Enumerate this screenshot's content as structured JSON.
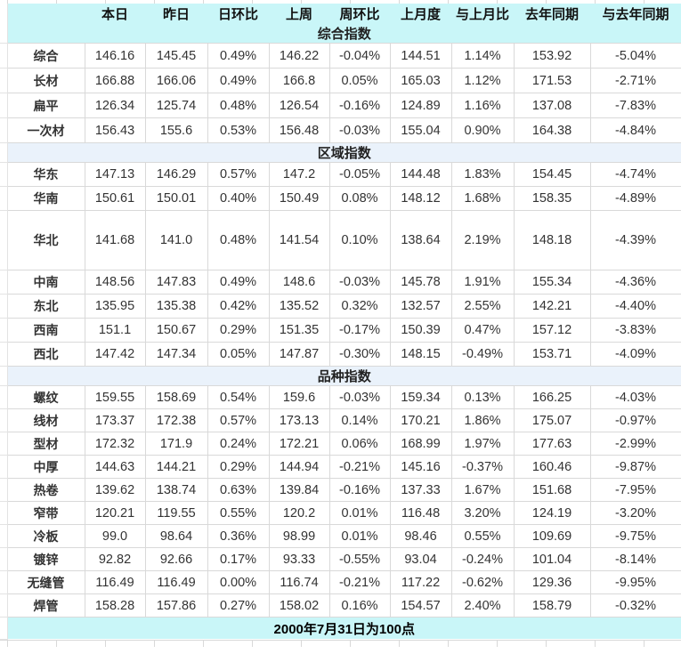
{
  "chart_data": {
    "type": "table",
    "columns": [
      "本日",
      "昨日",
      "日环比",
      "上周",
      "周环比",
      "上月度",
      "与上月比",
      "去年同期",
      "与去年同期"
    ],
    "tone_legend": {
      "u": "up-red",
      "d": "down-green",
      "n": "neutral-black"
    },
    "sections": [
      {
        "title": "综合指数",
        "band": "cyan",
        "rows": [
          {
            "label": "综合",
            "cells": [
              [
                "146.16",
                "n"
              ],
              [
                "145.45",
                "n"
              ],
              [
                "0.49%",
                "u"
              ],
              [
                "146.22",
                "n"
              ],
              [
                "-0.04%",
                "d"
              ],
              [
                "144.51",
                "n"
              ],
              [
                "1.14%",
                "u"
              ],
              [
                "153.92",
                "n"
              ],
              [
                "-5.04%",
                "d"
              ]
            ]
          },
          {
            "label": "长材",
            "cells": [
              [
                "166.88",
                "n"
              ],
              [
                "166.06",
                "n"
              ],
              [
                "0.49%",
                "u"
              ],
              [
                "166.8",
                "n"
              ],
              [
                "0.05%",
                "u"
              ],
              [
                "165.03",
                "n"
              ],
              [
                "1.12%",
                "u"
              ],
              [
                "171.53",
                "n"
              ],
              [
                "-2.71%",
                "d"
              ]
            ]
          },
          {
            "label": "扁平",
            "cells": [
              [
                "126.34",
                "n"
              ],
              [
                "125.74",
                "n"
              ],
              [
                "0.48%",
                "u"
              ],
              [
                "126.54",
                "n"
              ],
              [
                "-0.16%",
                "d"
              ],
              [
                "124.89",
                "n"
              ],
              [
                "1.16%",
                "u"
              ],
              [
                "137.08",
                "n"
              ],
              [
                "-7.83%",
                "d"
              ]
            ]
          },
          {
            "label": "一次材",
            "cells": [
              [
                "156.43",
                "n"
              ],
              [
                "155.6",
                "n"
              ],
              [
                "0.53%",
                "u"
              ],
              [
                "156.48",
                "n"
              ],
              [
                "-0.03%",
                "d"
              ],
              [
                "155.04",
                "n"
              ],
              [
                "0.90%",
                "u"
              ],
              [
                "164.38",
                "n"
              ],
              [
                "-4.84%",
                "d"
              ]
            ]
          }
        ]
      },
      {
        "title": "区域指数",
        "band": "blue",
        "rows": [
          {
            "label": "华东",
            "cells": [
              [
                "147.13",
                "n"
              ],
              [
                "146.29",
                "n"
              ],
              [
                "0.57%",
                "u"
              ],
              [
                "147.2",
                "n"
              ],
              [
                "-0.05%",
                "d"
              ],
              [
                "144.48",
                "n"
              ],
              [
                "1.83%",
                "u"
              ],
              [
                "154.45",
                "n"
              ],
              [
                "-4.74%",
                "d"
              ]
            ]
          },
          {
            "label": "华南",
            "cells": [
              [
                "150.61",
                "n"
              ],
              [
                "150.01",
                "n"
              ],
              [
                "0.40%",
                "u"
              ],
              [
                "150.49",
                "n"
              ],
              [
                "0.08%",
                "u"
              ],
              [
                "148.12",
                "n"
              ],
              [
                "1.68%",
                "u"
              ],
              [
                "158.35",
                "n"
              ],
              [
                "-4.89%",
                "d"
              ]
            ]
          },
          {
            "label": "华北",
            "tall": true,
            "cells": [
              [
                "141.68",
                "n"
              ],
              [
                "141.0",
                "n"
              ],
              [
                "0.48%",
                "u"
              ],
              [
                "141.54",
                "n"
              ],
              [
                "0.10%",
                "u"
              ],
              [
                "138.64",
                "n"
              ],
              [
                "2.19%",
                "u"
              ],
              [
                "148.18",
                "n"
              ],
              [
                "-4.39%",
                "d"
              ]
            ]
          },
          {
            "label": "中南",
            "cells": [
              [
                "148.56",
                "n"
              ],
              [
                "147.83",
                "n"
              ],
              [
                "0.49%",
                "u"
              ],
              [
                "148.6",
                "n"
              ],
              [
                "-0.03%",
                "d"
              ],
              [
                "145.78",
                "n"
              ],
              [
                "1.91%",
                "u"
              ],
              [
                "155.34",
                "n"
              ],
              [
                "-4.36%",
                "d"
              ]
            ]
          },
          {
            "label": "东北",
            "cells": [
              [
                "135.95",
                "n"
              ],
              [
                "135.38",
                "n"
              ],
              [
                "0.42%",
                "u"
              ],
              [
                "135.52",
                "n"
              ],
              [
                "0.32%",
                "u"
              ],
              [
                "132.57",
                "n"
              ],
              [
                "2.55%",
                "u"
              ],
              [
                "142.21",
                "n"
              ],
              [
                "-4.40%",
                "d"
              ]
            ]
          },
          {
            "label": "西南",
            "cells": [
              [
                "151.1",
                "n"
              ],
              [
                "150.67",
                "n"
              ],
              [
                "0.29%",
                "u"
              ],
              [
                "151.35",
                "n"
              ],
              [
                "-0.17%",
                "d"
              ],
              [
                "150.39",
                "n"
              ],
              [
                "0.47%",
                "u"
              ],
              [
                "157.12",
                "n"
              ],
              [
                "-3.83%",
                "d"
              ]
            ]
          },
          {
            "label": "西北",
            "cells": [
              [
                "147.42",
                "n"
              ],
              [
                "147.34",
                "n"
              ],
              [
                "0.05%",
                "u"
              ],
              [
                "147.87",
                "n"
              ],
              [
                "-0.30%",
                "d"
              ],
              [
                "148.15",
                "n"
              ],
              [
                "-0.49%",
                "d"
              ],
              [
                "153.71",
                "n"
              ],
              [
                "-4.09%",
                "d"
              ]
            ]
          }
        ]
      },
      {
        "title": "品种指数",
        "band": "blue",
        "rows": [
          {
            "label": "螺纹",
            "cells": [
              [
                "159.55",
                "n"
              ],
              [
                "158.69",
                "n"
              ],
              [
                "0.54%",
                "u"
              ],
              [
                "159.6",
                "n"
              ],
              [
                "-0.03%",
                "d"
              ],
              [
                "159.34",
                "n"
              ],
              [
                "0.13%",
                "u"
              ],
              [
                "166.25",
                "n"
              ],
              [
                "-4.03%",
                "d"
              ]
            ]
          },
          {
            "label": "线材",
            "cells": [
              [
                "173.37",
                "n"
              ],
              [
                "172.38",
                "n"
              ],
              [
                "0.57%",
                "u"
              ],
              [
                "173.13",
                "n"
              ],
              [
                "0.14%",
                "u"
              ],
              [
                "170.21",
                "n"
              ],
              [
                "1.86%",
                "u"
              ],
              [
                "175.07",
                "n"
              ],
              [
                "-0.97%",
                "d"
              ]
            ]
          },
          {
            "label": "型材",
            "cells": [
              [
                "172.32",
                "n"
              ],
              [
                "171.9",
                "n"
              ],
              [
                "0.24%",
                "u"
              ],
              [
                "172.21",
                "n"
              ],
              [
                "0.06%",
                "u"
              ],
              [
                "168.99",
                "n"
              ],
              [
                "1.97%",
                "u"
              ],
              [
                "177.63",
                "n"
              ],
              [
                "-2.99%",
                "d"
              ]
            ]
          },
          {
            "label": "中厚",
            "cells": [
              [
                "144.63",
                "n"
              ],
              [
                "144.21",
                "n"
              ],
              [
                "0.29%",
                "u"
              ],
              [
                "144.94",
                "n"
              ],
              [
                "-0.21%",
                "d"
              ],
              [
                "145.16",
                "n"
              ],
              [
                "-0.37%",
                "d"
              ],
              [
                "160.46",
                "n"
              ],
              [
                "-9.87%",
                "d"
              ]
            ]
          },
          {
            "label": "热卷",
            "cells": [
              [
                "139.62",
                "n"
              ],
              [
                "138.74",
                "n"
              ],
              [
                "0.63%",
                "u"
              ],
              [
                "139.84",
                "n"
              ],
              [
                "-0.16%",
                "d"
              ],
              [
                "137.33",
                "n"
              ],
              [
                "1.67%",
                "u"
              ],
              [
                "151.68",
                "n"
              ],
              [
                "-7.95%",
                "d"
              ]
            ]
          },
          {
            "label": "窄带",
            "cells": [
              [
                "120.21",
                "n"
              ],
              [
                "119.55",
                "n"
              ],
              [
                "0.55%",
                "u"
              ],
              [
                "120.2",
                "n"
              ],
              [
                "0.01%",
                "u"
              ],
              [
                "116.48",
                "n"
              ],
              [
                "3.20%",
                "u"
              ],
              [
                "124.19",
                "n"
              ],
              [
                "-3.20%",
                "d"
              ]
            ]
          },
          {
            "label": "冷板",
            "cells": [
              [
                "99.0",
                "n"
              ],
              [
                "98.64",
                "n"
              ],
              [
                "0.36%",
                "u"
              ],
              [
                "98.99",
                "n"
              ],
              [
                "0.01%",
                "u"
              ],
              [
                "98.46",
                "n"
              ],
              [
                "0.55%",
                "u"
              ],
              [
                "109.69",
                "n"
              ],
              [
                "-9.75%",
                "d"
              ]
            ]
          },
          {
            "label": "镀锌",
            "cells": [
              [
                "92.82",
                "n"
              ],
              [
                "92.66",
                "n"
              ],
              [
                "0.17%",
                "u"
              ],
              [
                "93.33",
                "n"
              ],
              [
                "-0.55%",
                "d"
              ],
              [
                "93.04",
                "n"
              ],
              [
                "-0.24%",
                "d"
              ],
              [
                "101.04",
                "n"
              ],
              [
                "-8.14%",
                "d"
              ]
            ]
          },
          {
            "label": "无缝管",
            "cells": [
              [
                "116.49",
                "n"
              ],
              [
                "116.49",
                "n"
              ],
              [
                "0.00%",
                "n"
              ],
              [
                "116.74",
                "n"
              ],
              [
                "-0.21%",
                "d"
              ],
              [
                "117.22",
                "n"
              ],
              [
                "-0.62%",
                "d"
              ],
              [
                "129.36",
                "n"
              ],
              [
                "-9.95%",
                "d"
              ]
            ]
          },
          {
            "label": "焊管",
            "cells": [
              [
                "158.28",
                "n"
              ],
              [
                "157.86",
                "n"
              ],
              [
                "0.27%",
                "u"
              ],
              [
                "158.02",
                "n"
              ],
              [
                "0.16%",
                "u"
              ],
              [
                "154.57",
                "n"
              ],
              [
                "2.40%",
                "u"
              ],
              [
                "158.79",
                "n"
              ],
              [
                "-0.32%",
                "d"
              ]
            ]
          }
        ]
      }
    ],
    "footnote": "2000年7月31日为100点",
    "layout": {
      "grid": true,
      "legend_position": "none"
    }
  },
  "colors": {
    "up_red": "#ff0000",
    "down_green": "#008000",
    "neutral_text": "#333333",
    "cyan_band_bg": "#c9f6f8",
    "blue_band_bg": "#eaf2fb",
    "border": "#d9d9d9"
  }
}
